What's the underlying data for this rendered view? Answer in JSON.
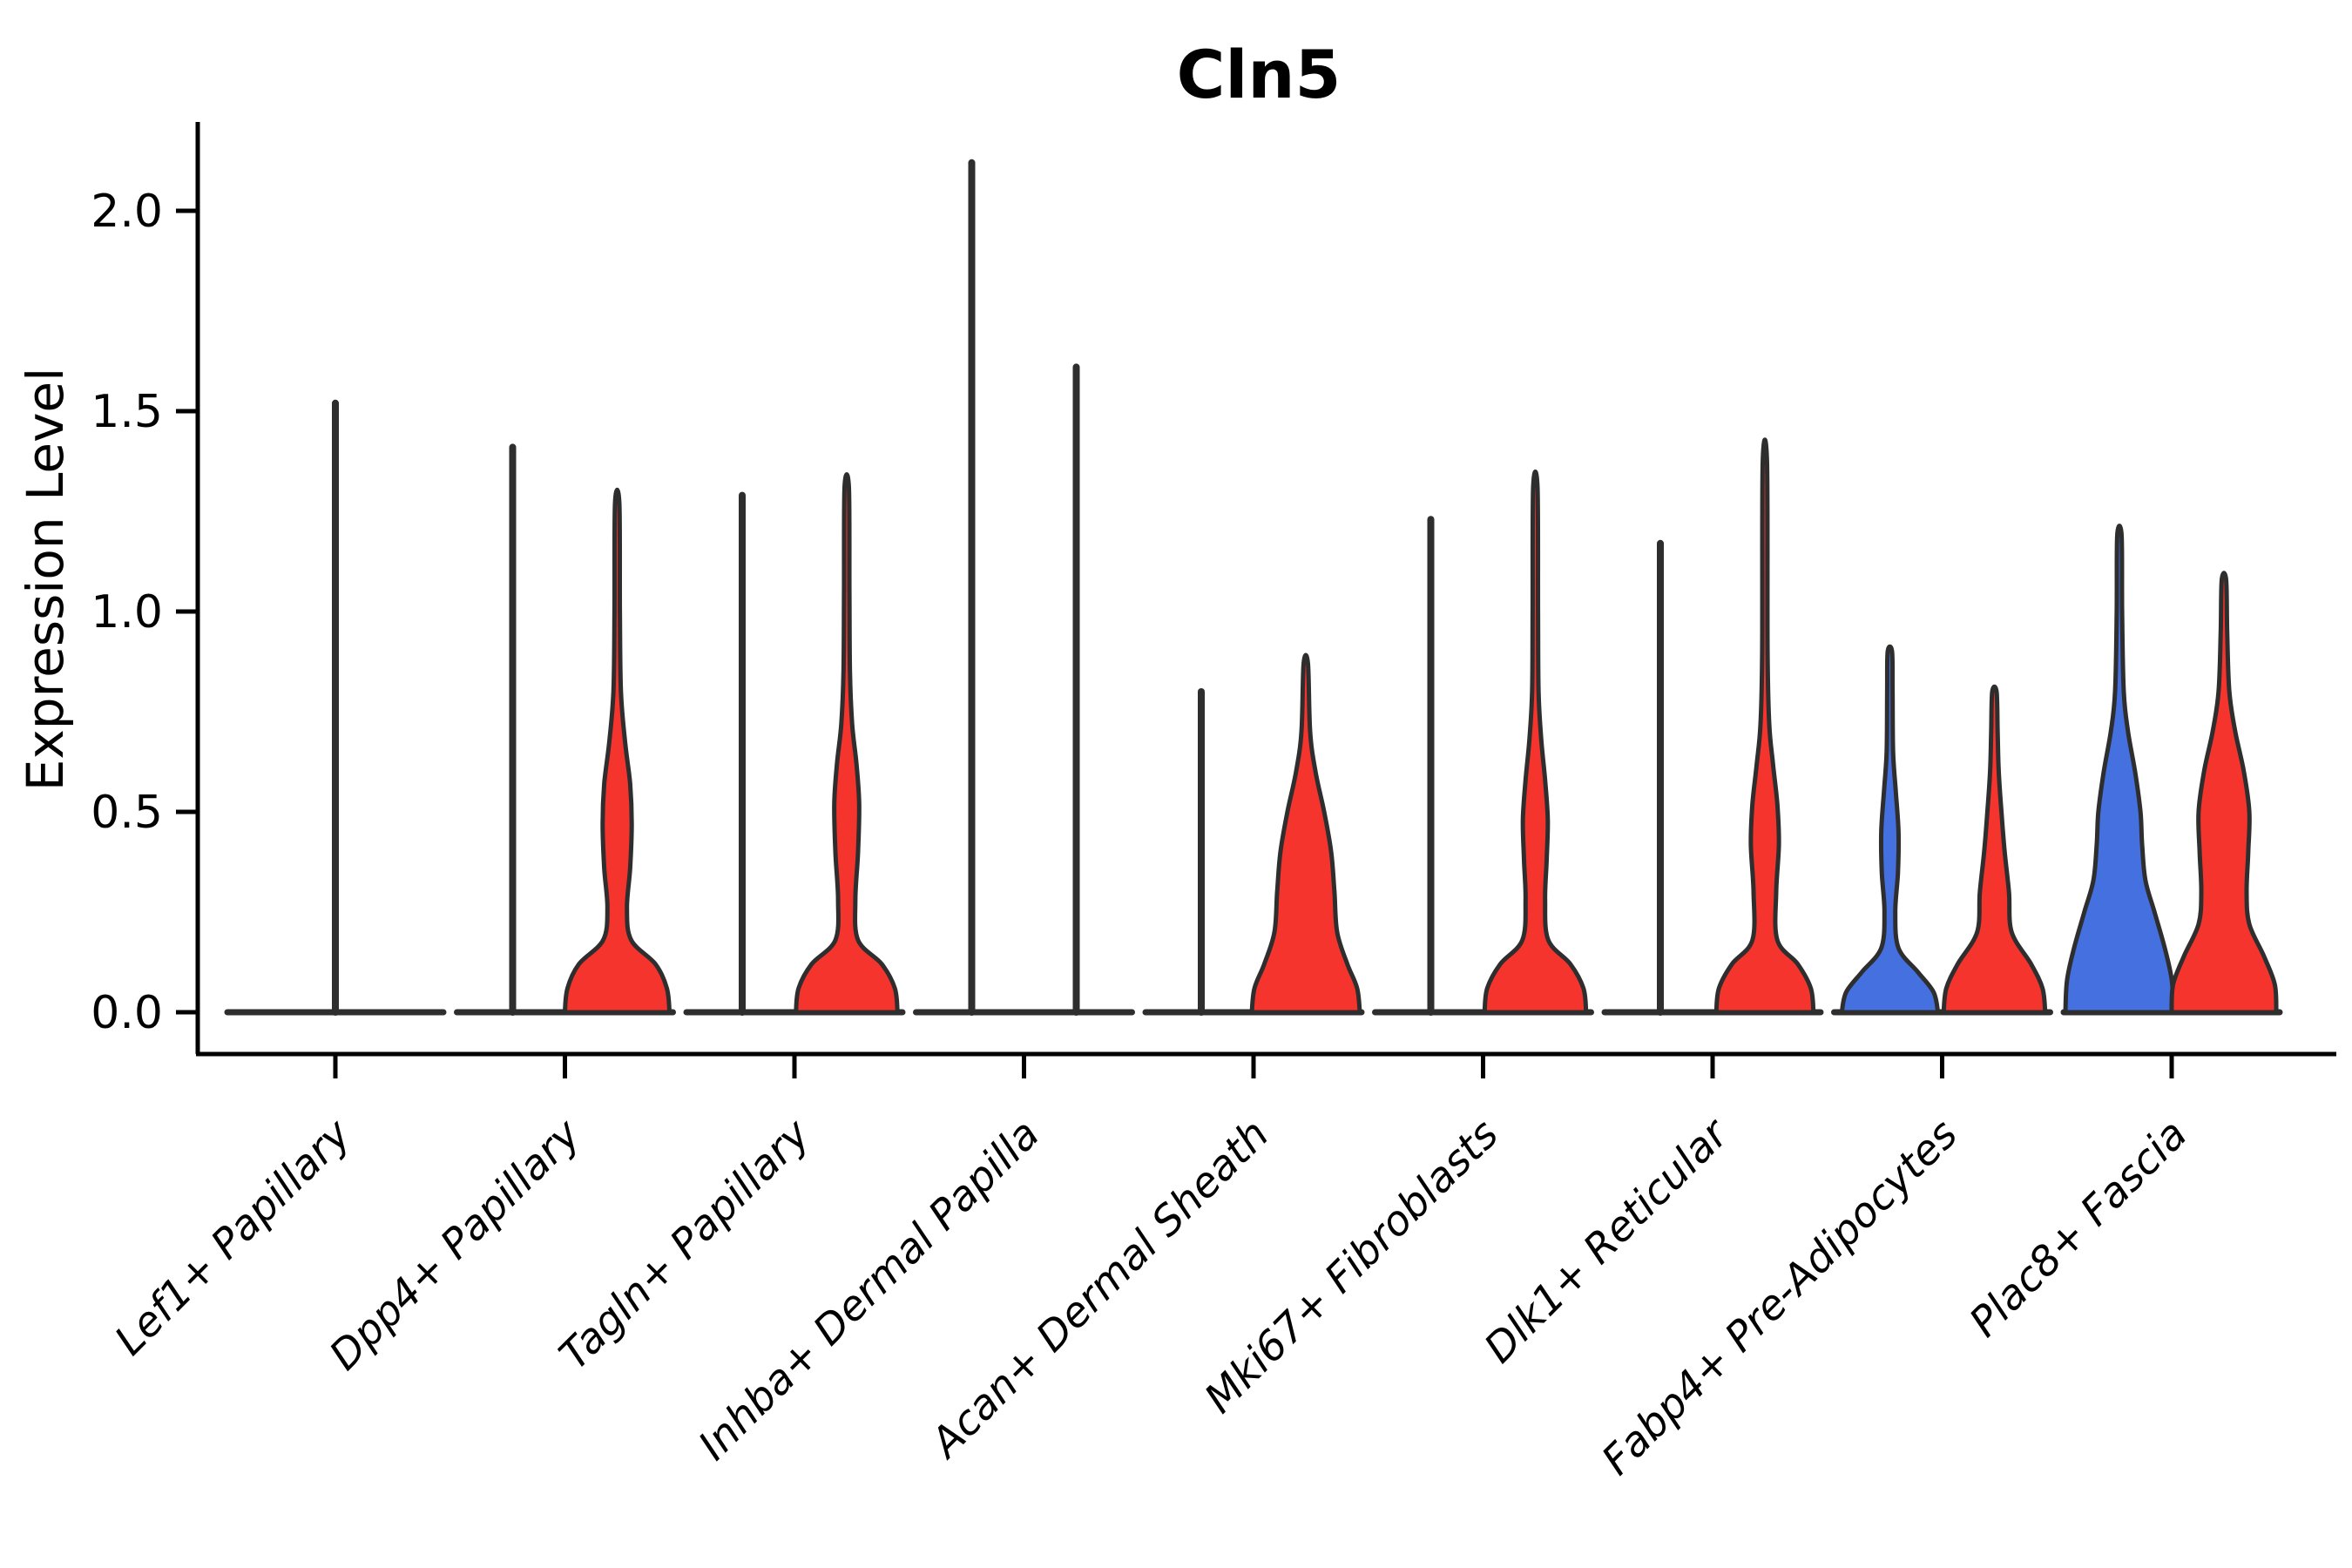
{
  "chart_data": {
    "type": "violin",
    "title": "Cln5",
    "ylabel": "Expression Level",
    "xlabel": "",
    "yticks": [
      0.0,
      0.5,
      1.0,
      1.5,
      2.0
    ],
    "ytick_labels": [
      "0.0",
      "0.5",
      "1.0",
      "1.5",
      "2.0"
    ],
    "ylim": [
      0.0,
      2.22
    ],
    "grid": false,
    "legend": "none",
    "x_tick_rotation": 45,
    "colors": {
      "split_left_fill": "#4470E0",
      "split_right_fill": "#F5342E",
      "outline": "#2E2E2E",
      "axis": "#000000"
    },
    "categories": [
      "Lef1+ Papillary",
      "Dpp4+ Papillary",
      "Tagln+ Papillary",
      "Inhba+ Dermal Papilla",
      "Acan+ Dermal Sheath",
      "Mki67+ Fibroblasts",
      "Dlk1+ Reticular",
      "Fabp4+ Pre-Adipocytes",
      "Plac8+ Fascia"
    ],
    "violins": [
      {
        "category_index": 0,
        "category": "Lef1+ Papillary",
        "side": "center",
        "shape": "line",
        "fill": null,
        "max_expression": 1.52
      },
      {
        "category_index": 1,
        "category": "Dpp4+ Papillary",
        "side": "left",
        "shape": "line",
        "fill": null,
        "max_expression": 1.41
      },
      {
        "category_index": 1,
        "category": "Dpp4+ Papillary",
        "side": "right",
        "shape": "violin",
        "fill": "red",
        "max_expression": 1.27,
        "width_profile": [
          [
            0,
            0.97
          ],
          [
            0.06,
            0.92
          ],
          [
            0.12,
            0.71
          ],
          [
            0.18,
            0.26
          ],
          [
            0.26,
            0.18
          ],
          [
            0.36,
            0.24
          ],
          [
            0.47,
            0.27
          ],
          [
            0.57,
            0.24
          ],
          [
            0.67,
            0.15
          ],
          [
            0.8,
            0.07
          ],
          [
            1.0,
            0.05
          ],
          [
            1.27,
            0.04
          ]
        ]
      },
      {
        "category_index": 2,
        "category": "Tagln+ Papillary",
        "side": "left",
        "shape": "line",
        "fill": null,
        "max_expression": 1.29
      },
      {
        "category_index": 2,
        "category": "Tagln+ Papillary",
        "side": "right",
        "shape": "violin",
        "fill": "red",
        "max_expression": 1.31,
        "width_profile": [
          [
            0,
            0.94
          ],
          [
            0.06,
            0.89
          ],
          [
            0.12,
            0.65
          ],
          [
            0.18,
            0.21
          ],
          [
            0.28,
            0.16
          ],
          [
            0.4,
            0.21
          ],
          [
            0.52,
            0.23
          ],
          [
            0.62,
            0.18
          ],
          [
            0.72,
            0.1
          ],
          [
            0.85,
            0.06
          ],
          [
            1.05,
            0.05
          ],
          [
            1.31,
            0.04
          ]
        ]
      },
      {
        "category_index": 3,
        "category": "Inhba+ Dermal Papilla",
        "side": "left",
        "shape": "line",
        "fill": null,
        "max_expression": 2.12
      },
      {
        "category_index": 3,
        "category": "Inhba+ Dermal Papilla",
        "side": "right",
        "shape": "line",
        "fill": null,
        "max_expression": 1.61
      },
      {
        "category_index": 4,
        "category": "Acan+ Dermal Sheath",
        "side": "left",
        "shape": "line",
        "fill": null,
        "max_expression": 0.8
      },
      {
        "category_index": 4,
        "category": "Acan+ Dermal Sheath",
        "side": "right",
        "shape": "violin",
        "fill": "red",
        "max_expression": 0.87,
        "width_profile": [
          [
            0,
            1.0
          ],
          [
            0.06,
            0.95
          ],
          [
            0.12,
            0.77
          ],
          [
            0.2,
            0.58
          ],
          [
            0.3,
            0.53
          ],
          [
            0.4,
            0.47
          ],
          [
            0.5,
            0.34
          ],
          [
            0.6,
            0.18
          ],
          [
            0.7,
            0.08
          ],
          [
            0.87,
            0.04
          ]
        ]
      },
      {
        "category_index": 5,
        "category": "Mki67+ Fibroblasts",
        "side": "left",
        "shape": "line",
        "fill": null,
        "max_expression": 1.23
      },
      {
        "category_index": 5,
        "category": "Mki67+ Fibroblasts",
        "side": "right",
        "shape": "violin",
        "fill": "red",
        "max_expression": 1.31,
        "width_profile": [
          [
            0,
            0.94
          ],
          [
            0.06,
            0.89
          ],
          [
            0.12,
            0.65
          ],
          [
            0.18,
            0.24
          ],
          [
            0.28,
            0.18
          ],
          [
            0.38,
            0.21
          ],
          [
            0.48,
            0.23
          ],
          [
            0.58,
            0.18
          ],
          [
            0.68,
            0.11
          ],
          [
            0.8,
            0.06
          ],
          [
            1.0,
            0.05
          ],
          [
            1.31,
            0.04
          ]
        ]
      },
      {
        "category_index": 6,
        "category": "Dlk1+ Reticular",
        "side": "left",
        "shape": "line",
        "fill": null,
        "max_expression": 1.17
      },
      {
        "category_index": 6,
        "category": "Dlk1+ Reticular",
        "side": "right",
        "shape": "violin",
        "fill": "red",
        "max_expression": 1.37,
        "width_profile": [
          [
            0,
            0.9
          ],
          [
            0.06,
            0.85
          ],
          [
            0.12,
            0.61
          ],
          [
            0.18,
            0.23
          ],
          [
            0.3,
            0.21
          ],
          [
            0.42,
            0.26
          ],
          [
            0.52,
            0.23
          ],
          [
            0.62,
            0.15
          ],
          [
            0.72,
            0.08
          ],
          [
            0.9,
            0.05
          ],
          [
            1.37,
            0.04
          ]
        ]
      },
      {
        "category_index": 7,
        "category": "Fabp4+ Pre-Adipocytes",
        "side": "left",
        "shape": "violin",
        "fill": "blue",
        "max_expression": 0.9,
        "width_profile": [
          [
            0,
            0.89
          ],
          [
            0.05,
            0.81
          ],
          [
            0.1,
            0.52
          ],
          [
            0.16,
            0.16
          ],
          [
            0.25,
            0.1
          ],
          [
            0.35,
            0.15
          ],
          [
            0.45,
            0.16
          ],
          [
            0.55,
            0.11
          ],
          [
            0.65,
            0.06
          ],
          [
            0.8,
            0.05
          ],
          [
            0.9,
            0.04
          ]
        ]
      },
      {
        "category_index": 7,
        "category": "Fabp4+ Pre-Adipocytes",
        "side": "right",
        "shape": "violin",
        "fill": "red",
        "max_expression": 0.8,
        "width_profile": [
          [
            0,
            0.94
          ],
          [
            0.06,
            0.89
          ],
          [
            0.12,
            0.68
          ],
          [
            0.2,
            0.32
          ],
          [
            0.3,
            0.27
          ],
          [
            0.4,
            0.19
          ],
          [
            0.5,
            0.13
          ],
          [
            0.6,
            0.08
          ],
          [
            0.7,
            0.06
          ],
          [
            0.8,
            0.04
          ]
        ]
      },
      {
        "category_index": 8,
        "category": "Plac8+ Fascia",
        "side": "left",
        "shape": "violin",
        "fill": "blue",
        "max_expression": 1.19,
        "width_profile": [
          [
            0,
            1.0
          ],
          [
            0.08,
            0.97
          ],
          [
            0.16,
            0.84
          ],
          [
            0.25,
            0.65
          ],
          [
            0.33,
            0.48
          ],
          [
            0.42,
            0.42
          ],
          [
            0.5,
            0.39
          ],
          [
            0.6,
            0.29
          ],
          [
            0.7,
            0.16
          ],
          [
            0.8,
            0.08
          ],
          [
            1.0,
            0.05
          ],
          [
            1.19,
            0.04
          ]
        ]
      },
      {
        "category_index": 8,
        "category": "Plac8+ Fascia",
        "side": "right",
        "shape": "violin",
        "fill": "red",
        "max_expression": 1.08,
        "width_profile": [
          [
            0,
            0.97
          ],
          [
            0.07,
            0.94
          ],
          [
            0.14,
            0.74
          ],
          [
            0.22,
            0.47
          ],
          [
            0.3,
            0.42
          ],
          [
            0.4,
            0.45
          ],
          [
            0.5,
            0.47
          ],
          [
            0.6,
            0.37
          ],
          [
            0.7,
            0.21
          ],
          [
            0.8,
            0.1
          ],
          [
            0.95,
            0.06
          ],
          [
            1.08,
            0.04
          ]
        ]
      }
    ]
  }
}
